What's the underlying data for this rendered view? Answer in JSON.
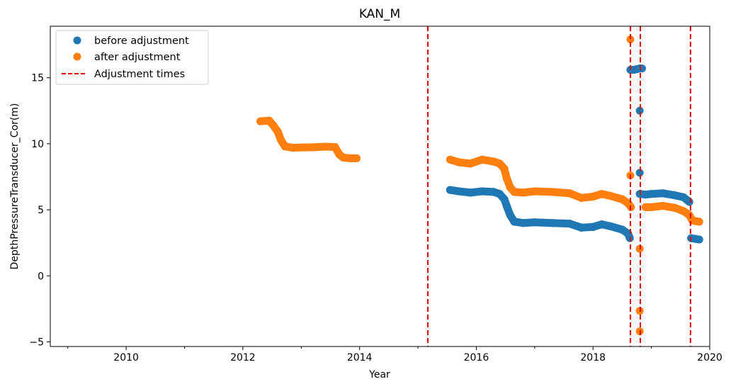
{
  "chart_data": {
    "type": "scatter",
    "title": "KAN_M",
    "xlabel": "Year",
    "ylabel": "DepthPressureTransducer_Cor(m)",
    "xlim": [
      2008.7,
      2020.0
    ],
    "ylim": [
      -5.35,
      18.9
    ],
    "x_ticks": [
      2010,
      2012,
      2014,
      2016,
      2018,
      2020
    ],
    "x_minor_ticks": [
      2009,
      2011,
      2013,
      2015,
      2017,
      2019
    ],
    "y_ticks": [
      -5,
      0,
      5,
      10,
      15
    ],
    "grid": false,
    "legend_position": "top-left",
    "series": [
      {
        "name": "before adjustment",
        "color": "#1f77b4",
        "marker": "circle",
        "points": [
          [
            2015.55,
            6.5
          ],
          [
            2015.7,
            6.4
          ],
          [
            2015.9,
            6.3
          ],
          [
            2016.1,
            6.4
          ],
          [
            2016.3,
            6.35
          ],
          [
            2016.4,
            6.2
          ],
          [
            2016.48,
            5.8
          ],
          [
            2016.52,
            5.3
          ],
          [
            2016.58,
            4.6
          ],
          [
            2016.65,
            4.1
          ],
          [
            2016.8,
            4.0
          ],
          [
            2017.0,
            4.05
          ],
          [
            2017.3,
            4.0
          ],
          [
            2017.6,
            3.95
          ],
          [
            2017.8,
            3.65
          ],
          [
            2018.0,
            3.7
          ],
          [
            2018.15,
            3.9
          ],
          [
            2018.3,
            3.75
          ],
          [
            2018.5,
            3.5
          ],
          [
            2018.6,
            3.2
          ],
          [
            2018.63,
            2.85
          ],
          [
            2018.64,
            15.6
          ],
          [
            2018.7,
            15.6
          ],
          [
            2018.75,
            15.65
          ],
          [
            2018.8,
            15.7
          ],
          [
            2018.84,
            15.7
          ],
          [
            2018.8,
            12.5
          ],
          [
            2018.8,
            7.8
          ],
          [
            2018.8,
            6.2
          ],
          [
            2018.9,
            6.15
          ],
          [
            2019.0,
            6.2
          ],
          [
            2019.2,
            6.25
          ],
          [
            2019.4,
            6.1
          ],
          [
            2019.55,
            5.95
          ],
          [
            2019.65,
            5.6
          ],
          [
            2019.68,
            2.85
          ],
          [
            2019.75,
            2.8
          ],
          [
            2019.82,
            2.75
          ]
        ]
      },
      {
        "name": "after adjustment",
        "color": "#ff7f0e",
        "marker": "circle",
        "points": [
          [
            2012.3,
            11.7
          ],
          [
            2012.45,
            11.75
          ],
          [
            2012.52,
            11.4
          ],
          [
            2012.6,
            10.9
          ],
          [
            2012.65,
            10.3
          ],
          [
            2012.72,
            9.8
          ],
          [
            2012.85,
            9.7
          ],
          [
            2013.0,
            9.72
          ],
          [
            2013.2,
            9.73
          ],
          [
            2013.4,
            9.78
          ],
          [
            2013.58,
            9.75
          ],
          [
            2013.65,
            9.2
          ],
          [
            2013.72,
            8.95
          ],
          [
            2013.85,
            8.9
          ],
          [
            2013.95,
            8.9
          ],
          [
            2015.55,
            8.8
          ],
          [
            2015.7,
            8.6
          ],
          [
            2015.9,
            8.5
          ],
          [
            2016.1,
            8.8
          ],
          [
            2016.3,
            8.65
          ],
          [
            2016.4,
            8.5
          ],
          [
            2016.48,
            8.1
          ],
          [
            2016.52,
            7.4
          ],
          [
            2016.58,
            6.7
          ],
          [
            2016.65,
            6.35
          ],
          [
            2016.8,
            6.3
          ],
          [
            2017.0,
            6.4
          ],
          [
            2017.3,
            6.35
          ],
          [
            2017.6,
            6.25
          ],
          [
            2017.8,
            5.9
          ],
          [
            2018.0,
            6.0
          ],
          [
            2018.15,
            6.2
          ],
          [
            2018.3,
            6.05
          ],
          [
            2018.5,
            5.8
          ],
          [
            2018.6,
            5.5
          ],
          [
            2018.65,
            5.2
          ],
          [
            2018.64,
            17.9
          ],
          [
            2018.64,
            7.6
          ],
          [
            2018.8,
            2.05
          ],
          [
            2018.8,
            -2.65
          ],
          [
            2018.8,
            -4.2
          ],
          [
            2018.9,
            5.2
          ],
          [
            2019.0,
            5.2
          ],
          [
            2019.2,
            5.3
          ],
          [
            2019.4,
            5.15
          ],
          [
            2019.55,
            4.9
          ],
          [
            2019.65,
            4.6
          ],
          [
            2019.7,
            4.2
          ],
          [
            2019.75,
            4.15
          ],
          [
            2019.82,
            4.1
          ]
        ]
      }
    ],
    "vlines": {
      "name": "Adjustment times",
      "color": "#e00000",
      "style": "dashed",
      "x": [
        2015.17,
        2018.64,
        2018.81,
        2019.67
      ]
    }
  }
}
